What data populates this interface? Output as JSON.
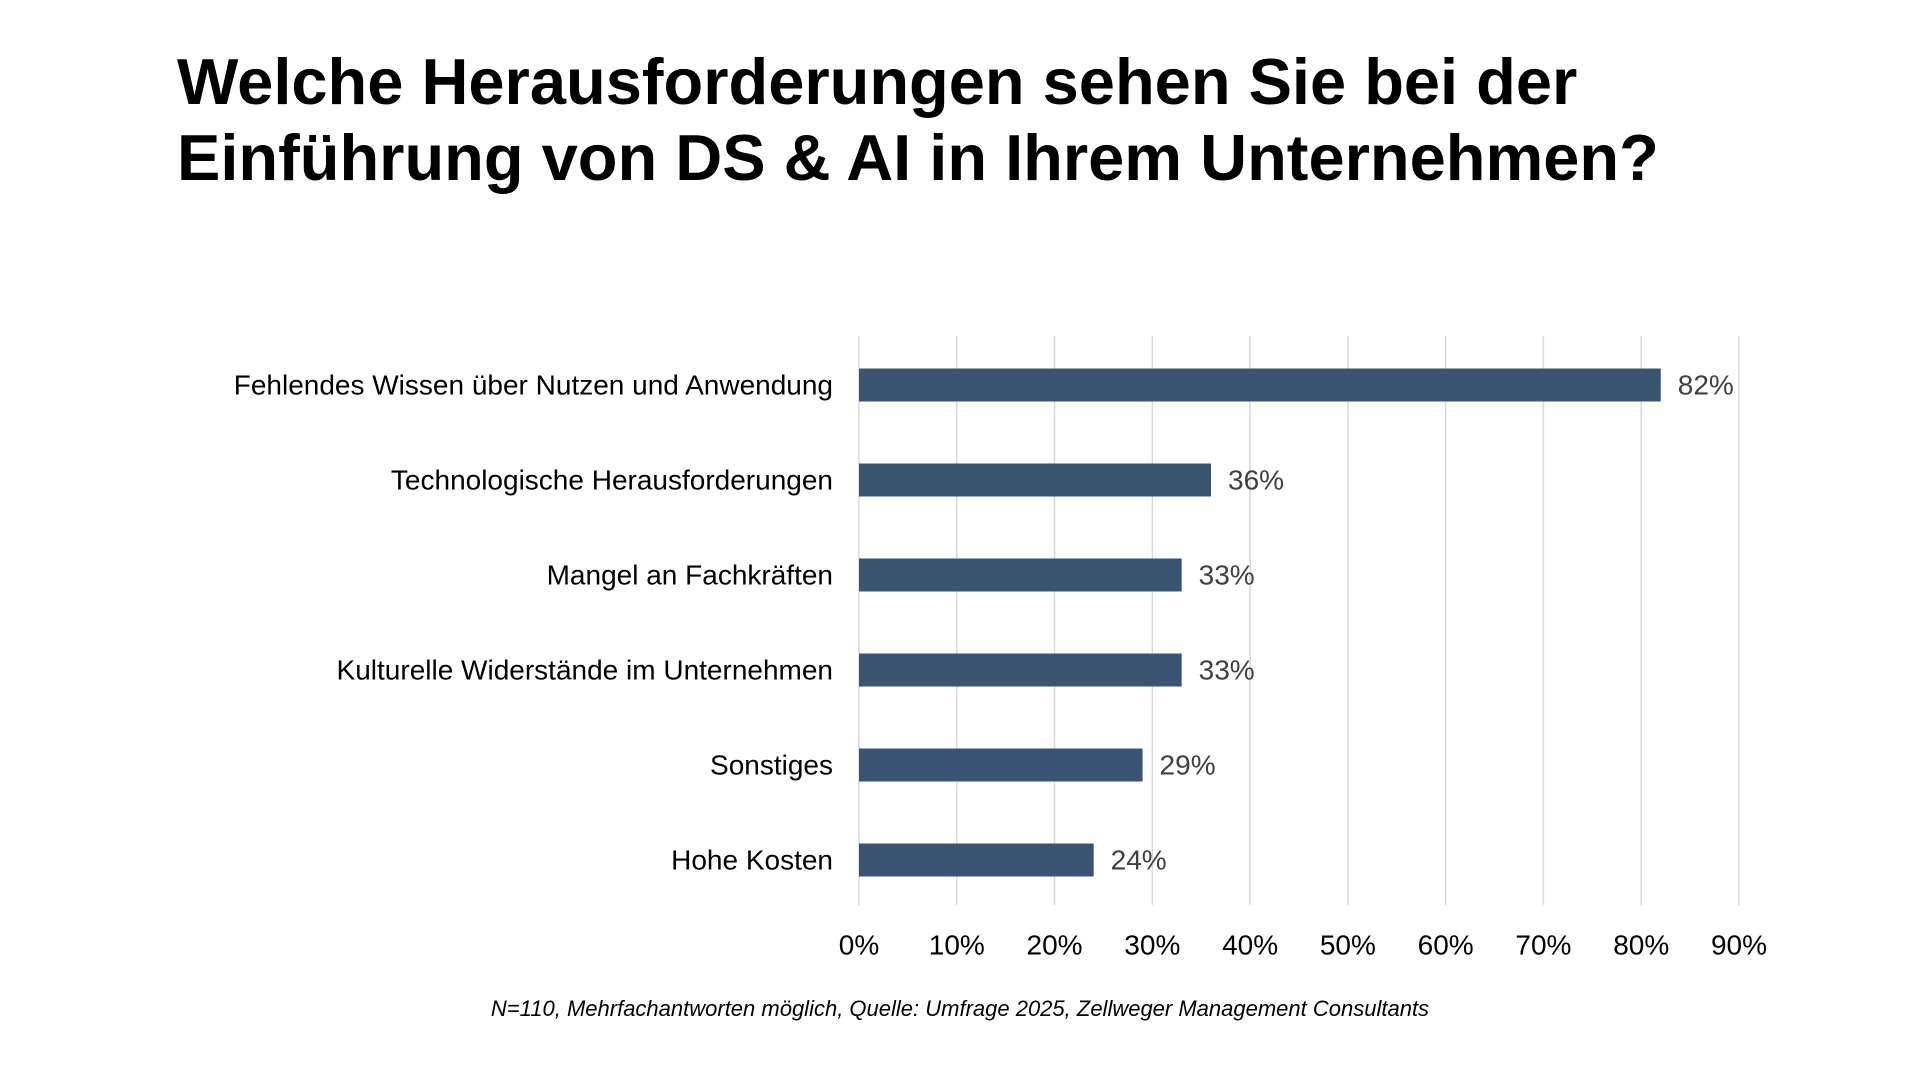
{
  "colors": {
    "bar": "#3a5472",
    "value_label": "#404040",
    "grid": "#d9d9d9"
  },
  "chart_data": {
    "type": "bar",
    "orientation": "horizontal",
    "title": "Welche Herausforderungen sehen Sie bei der\nEinführung von DS & AI in Ihrem Unternehmen?",
    "categories": [
      "Fehlendes Wissen über Nutzen und Anwendung",
      "Technologische Herausforderungen",
      "Mangel an Fachkräften",
      "Kulturelle Widerstände im Unternehmen",
      "Sonstiges",
      "Hohe Kosten"
    ],
    "values": [
      82,
      36,
      33,
      33,
      29,
      24
    ],
    "value_labels": [
      "82%",
      "36%",
      "33%",
      "33%",
      "29%",
      "24%"
    ],
    "xlim": [
      0,
      90
    ],
    "xticks": [
      0,
      10,
      20,
      30,
      40,
      50,
      60,
      70,
      80,
      90
    ],
    "xtick_labels": [
      "0%",
      "10%",
      "20%",
      "30%",
      "40%",
      "50%",
      "60%",
      "70%",
      "80%",
      "90%"
    ],
    "grid": "vertical",
    "legend": "none",
    "footnote": "N=110, Mehrfachantworten möglich, Quelle: Umfrage 2025, Zellweger Management Consultants"
  }
}
